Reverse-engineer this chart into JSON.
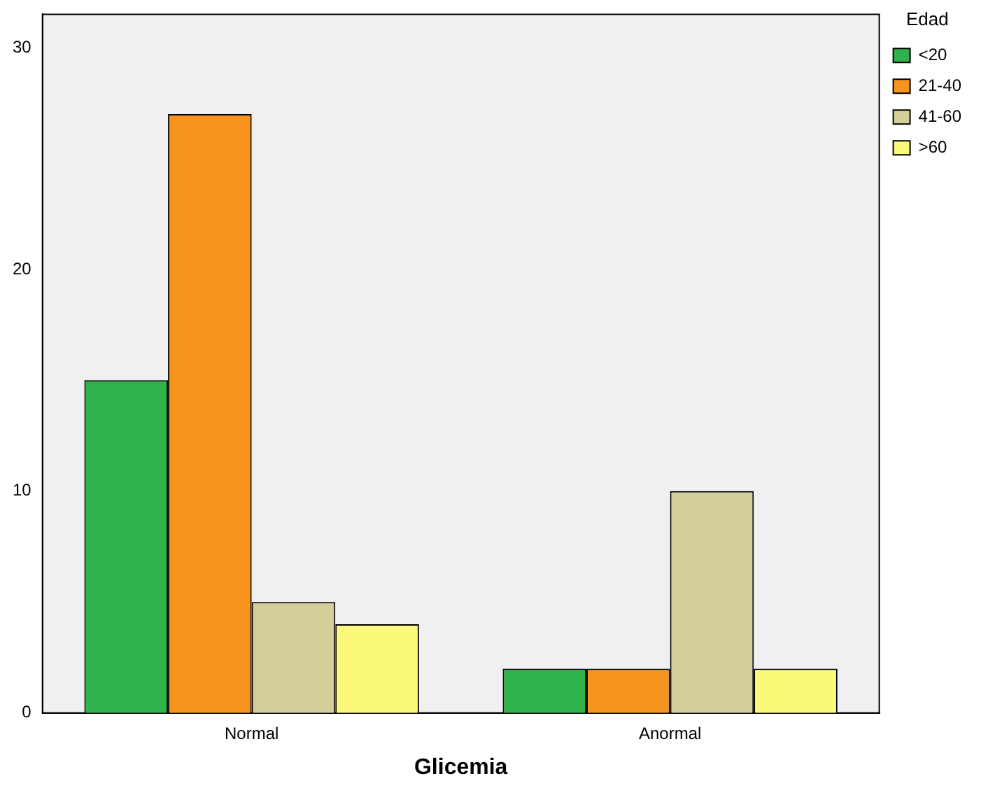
{
  "chart_data": {
    "type": "bar",
    "xlabel": "Glicemia",
    "legend_title": "Edad",
    "legend": "right",
    "grid": false,
    "categories": [
      "Normal",
      "Anormal"
    ],
    "series": [
      {
        "name": "<20",
        "color": "#2db34a",
        "values": [
          15,
          2
        ]
      },
      {
        "name": "21-40",
        "color": "#f7941d",
        "values": [
          27,
          2
        ]
      },
      {
        "name": "41-60",
        "color": "#d4cf9a",
        "values": [
          5,
          10
        ]
      },
      {
        "name": ">60",
        "color": "#fbf97a",
        "values": [
          4,
          2
        ]
      }
    ],
    "ylim": [
      0,
      31.5
    ],
    "yticks": [
      0,
      10,
      20,
      30
    ]
  }
}
